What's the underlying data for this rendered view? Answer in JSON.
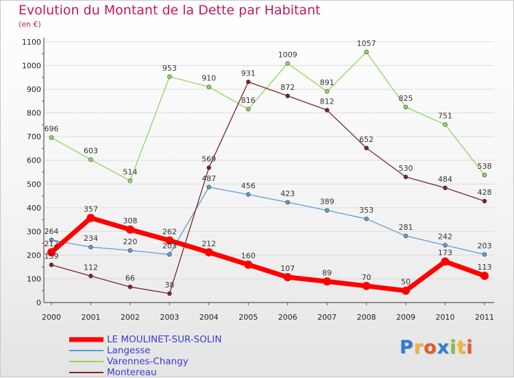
{
  "header": {
    "title": "Evolution du Montant de la Dette par Habitant",
    "unit": "(en €)"
  },
  "logo": {
    "text": "Proxiti",
    "letters": [
      {
        "ch": "P",
        "color": "#2e7dd1"
      },
      {
        "ch": "r",
        "color": "#f2b632"
      },
      {
        "ch": "o",
        "color": "#e8592b"
      },
      {
        "ch": "x",
        "color": "#2e7dd1"
      },
      {
        "ch": "i",
        "color": "#7cc242"
      },
      {
        "ch": "t",
        "color": "#f2b632"
      },
      {
        "ch": "i",
        "color": "#e8592b"
      }
    ]
  },
  "chart_data": {
    "type": "line",
    "title": "Evolution du Montant de la Dette par Habitant",
    "ylabel": "(en €)",
    "x": [
      "2000",
      "2001",
      "2002",
      "2003",
      "2004",
      "2005",
      "2006",
      "2007",
      "2008",
      "2009",
      "2010",
      "2011"
    ],
    "ylim": [
      0,
      1100
    ],
    "yticks": [
      0,
      100,
      200,
      300,
      400,
      500,
      600,
      700,
      800,
      900,
      1000,
      1100
    ],
    "grid": true,
    "legend": "bottom-left",
    "series": [
      {
        "name": "LE MOULINET-SUR-SOLIN",
        "color": "#ff0000",
        "emphasis": true,
        "values": [
          212,
          357,
          308,
          262,
          212,
          160,
          107,
          89,
          70,
          50,
          173,
          113
        ]
      },
      {
        "name": "Langesse",
        "color": "#5b9bd5",
        "emphasis": false,
        "values": [
          264,
          234,
          220,
          203,
          487,
          456,
          423,
          389,
          353,
          281,
          242,
          203
        ]
      },
      {
        "name": "Varennes-Changy",
        "color": "#8fd65a",
        "emphasis": false,
        "values": [
          696,
          603,
          514,
          953,
          910,
          816,
          1009,
          891,
          1057,
          825,
          751,
          538
        ]
      },
      {
        "name": "Montereau",
        "color": "#7b2424",
        "emphasis": false,
        "values": [
          159,
          112,
          66,
          38,
          569,
          931,
          872,
          812,
          652,
          530,
          484,
          428
        ]
      }
    ]
  }
}
